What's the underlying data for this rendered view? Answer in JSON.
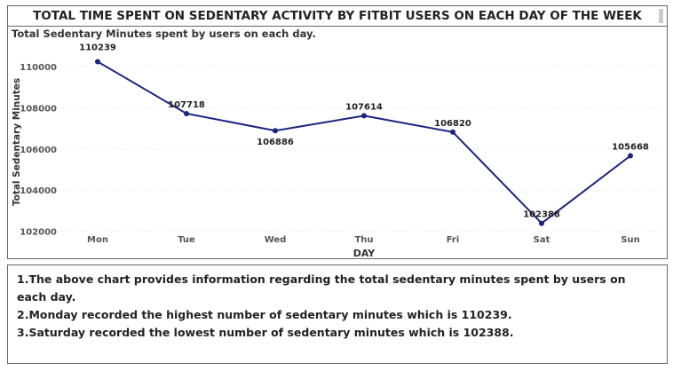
{
  "title": "TOTAL TIME SPENT ON SEDENTARY ACTIVITY BY FITBIT USERS ON EACH DAY OF THE WEEK",
  "chart_data": {
    "type": "line",
    "title": "Total Sedentary Minutes spent by users on each day.",
    "xlabel": "DAY",
    "ylabel": "Total Sedentary Minutes",
    "categories": [
      "Mon",
      "Tue",
      "Wed",
      "Thu",
      "Fri",
      "Sat",
      "Sun"
    ],
    "values": [
      110239,
      107718,
      106886,
      107614,
      106820,
      102388,
      105668
    ],
    "yticks": [
      102000,
      104000,
      106000,
      108000,
      110000
    ],
    "ylim": [
      101800,
      111000
    ],
    "grid": true,
    "color": "#1a237e"
  },
  "notes": [
    "1.The above chart provides information regarding the total sedentary minutes spent by users on each day.",
    "2.Monday recorded the highest number of sedentary minutes which is 110239.",
    "3.Saturday recorded the lowest number of sedentary minutes which is 102388."
  ]
}
